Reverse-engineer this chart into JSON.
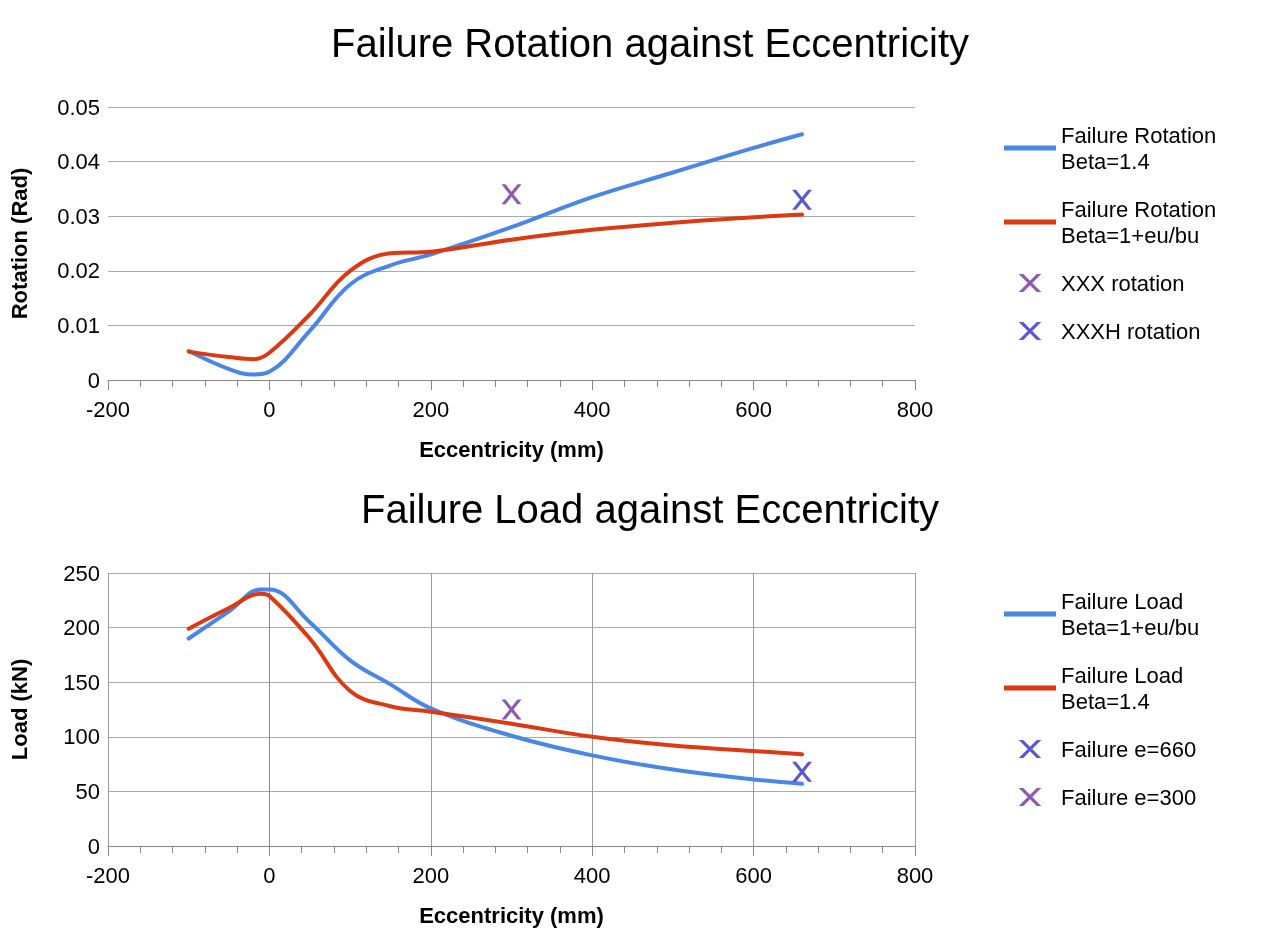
{
  "chart_data": [
    {
      "type": "line",
      "title": "Failure Rotation against Eccentricity",
      "xlabel": "Eccentricity (mm)",
      "ylabel": "Rotation (Rad)",
      "xlim": [
        -200,
        800
      ],
      "xticks": [
        -200,
        0,
        200,
        400,
        600,
        800
      ],
      "ylim": [
        0,
        0.05
      ],
      "yticks": [
        0,
        0.01,
        0.02,
        0.03,
        0.04,
        0.05
      ],
      "grid": "y",
      "legend": "right",
      "series": [
        {
          "name": "Failure Rotation Beta=1.4",
          "color": "#4a86e8",
          "marker": "none",
          "x": [
            -100,
            -50,
            -20,
            0,
            50,
            100,
            150,
            200,
            300,
            400,
            500,
            600,
            660
          ],
          "values": [
            0.0053,
            0.002,
            0.001,
            0.0015,
            0.009,
            0.0175,
            0.021,
            0.023,
            0.028,
            0.0335,
            0.038,
            0.0425,
            0.045
          ]
        },
        {
          "name": "Failure Rotation Beta=1+eu/bu",
          "color": "#dc3912",
          "marker": "none",
          "x": [
            -100,
            -50,
            -20,
            0,
            50,
            100,
            150,
            200,
            300,
            400,
            500,
            600,
            660
          ],
          "values": [
            0.0052,
            0.0042,
            0.0038,
            0.005,
            0.012,
            0.02,
            0.0232,
            0.0235,
            0.0257,
            0.0275,
            0.0288,
            0.0298,
            0.0303
          ]
        },
        {
          "name": "XXX rotation",
          "type": "scatter",
          "color": "#7030a0",
          "marker": "cross",
          "x": [
            300
          ],
          "values": [
            0.034
          ]
        },
        {
          "name": "XXXH rotation",
          "type": "scatter",
          "color": "#3030c0",
          "marker": "cross",
          "x": [
            660
          ],
          "values": [
            0.033
          ]
        }
      ]
    },
    {
      "type": "line",
      "title": "Failure Load against Eccentricity",
      "xlabel": "Eccentricity (mm)",
      "ylabel": "Load (kN)",
      "xlim": [
        -200,
        800
      ],
      "xticks": [
        -200,
        0,
        200,
        400,
        600,
        800
      ],
      "ylim": [
        0,
        250
      ],
      "yticks": [
        0,
        50,
        100,
        150,
        200,
        250
      ],
      "grid": true,
      "legend": "right",
      "series": [
        {
          "name": "Failure Load Beta=1+eu/bu",
          "color": "#4a86e8",
          "marker": "none",
          "x": [
            -100,
            -50,
            -10,
            0,
            50,
            100,
            150,
            200,
            300,
            400,
            500,
            600,
            660
          ],
          "values": [
            190,
            215,
            235,
            235,
            205,
            170,
            148,
            126,
            101,
            83,
            70,
            61,
            57
          ]
        },
        {
          "name": "Failure Load Beta=1.4",
          "color": "#dc3912",
          "marker": "none",
          "x": [
            -100,
            -50,
            -10,
            0,
            50,
            100,
            150,
            200,
            300,
            400,
            500,
            600,
            660
          ],
          "values": [
            199,
            218,
            231,
            229,
            190,
            142,
            128,
            123,
            112,
            100,
            92,
            87,
            84
          ]
        },
        {
          "name": "Failure e=660",
          "type": "scatter",
          "color": "#3030c0",
          "marker": "cross",
          "x": [
            660
          ],
          "values": [
            68
          ]
        },
        {
          "name": "Failure e=300",
          "type": "scatter",
          "color": "#7030a0",
          "marker": "cross",
          "x": [
            300
          ],
          "values": [
            125
          ]
        }
      ]
    }
  ]
}
